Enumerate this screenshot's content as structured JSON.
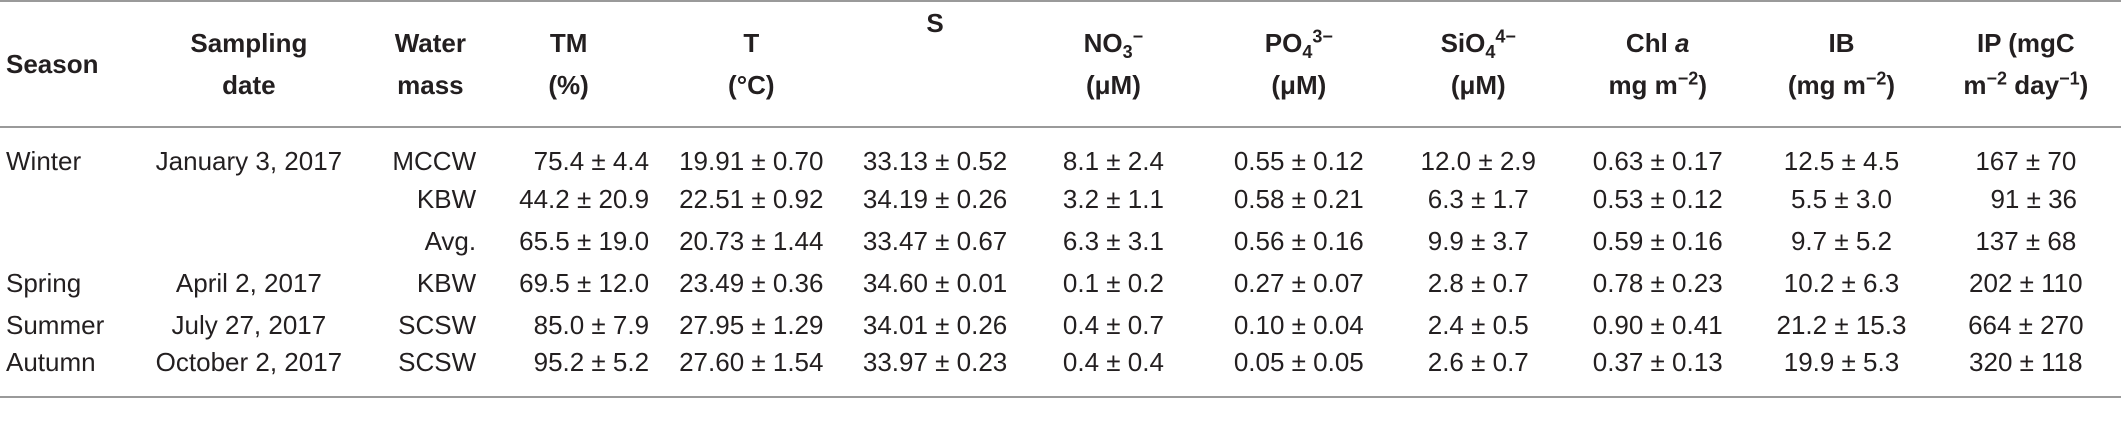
{
  "table": {
    "headers": {
      "season": "Season",
      "sampling_date": [
        "Sampling",
        "date"
      ],
      "water_mass": [
        "Water",
        "mass"
      ],
      "tm": [
        "TM",
        "(%)"
      ],
      "t": [
        "T",
        "(°C)"
      ],
      "s": "S",
      "no3": {
        "base": "NO",
        "sub": "3",
        "sup": "−",
        "unit": "(μM)"
      },
      "po4": {
        "base": "PO",
        "sub": "4",
        "sup": "3−",
        "unit": "(μM)"
      },
      "sio4": {
        "base": "SiO",
        "sub": "4",
        "sup": "4−",
        "unit": "(μM)"
      },
      "chl": {
        "base": "Chl ",
        "italic": "a",
        "unit_base": "mg m",
        "unit_sup": "−2",
        "unit_end": ")"
      },
      "ib": {
        "base": "IB",
        "unit_base": "(mg m",
        "unit_sup": "−2",
        "unit_end": ")"
      },
      "ip": {
        "line1": "IP (mgC",
        "unit_base": "m",
        "unit_sup1": "−2",
        "unit_mid": " day",
        "unit_sup2": "−1",
        "unit_end": ")"
      }
    },
    "rows": [
      {
        "season": "Winter",
        "date": "January 3, 2017",
        "water_mass": "MCCW",
        "tm": "75.4 ± 4.4",
        "t": "19.91 ± 0.70",
        "s": "33.13 ± 0.52",
        "no3": "8.1 ± 2.4",
        "po4": "0.55 ± 0.12",
        "sio4": "12.0 ± 2.9",
        "chl": "0.63 ± 0.17",
        "ib": "12.5 ± 4.5",
        "ip": "167 ± 70"
      },
      {
        "season": "",
        "date": "",
        "water_mass": "KBW",
        "tm": "44.2 ± 20.9",
        "t": "22.51 ± 0.92",
        "s": "34.19 ± 0.26",
        "no3": "3.2 ± 1.1",
        "po4": "0.58 ± 0.21",
        "sio4": "6.3 ± 1.7",
        "chl": "0.53 ± 0.12",
        "ib": "5.5 ± 3.0",
        "ip": "91 ± 36"
      },
      {
        "season": "",
        "date": "",
        "water_mass": "Avg.",
        "tm": "65.5 ± 19.0",
        "t": "20.73 ± 1.44",
        "s": "33.47 ± 0.67",
        "no3": "6.3 ± 3.1",
        "po4": "0.56 ± 0.16",
        "sio4": "9.9 ± 3.7",
        "chl": "0.59 ± 0.16",
        "ib": "9.7 ± 5.2",
        "ip": "137 ± 68"
      },
      {
        "season": "Spring",
        "date": "April 2, 2017",
        "water_mass": "KBW",
        "tm": "69.5 ± 12.0",
        "t": "23.49 ± 0.36",
        "s": "34.60 ± 0.01",
        "no3": "0.1 ± 0.2",
        "po4": "0.27 ± 0.07",
        "sio4": "2.8 ± 0.7",
        "chl": "0.78 ± 0.23",
        "ib": "10.2 ± 6.3",
        "ip": "202 ± 110"
      },
      {
        "season": "Summer",
        "date": "July 27, 2017",
        "water_mass": "SCSW",
        "tm": "85.0 ± 7.9",
        "t": "27.95 ± 1.29",
        "s": "34.01 ± 0.26",
        "no3": "0.4 ± 0.7",
        "po4": "0.10 ± 0.04",
        "sio4": "2.4 ± 0.5",
        "chl": "0.90 ± 0.41",
        "ib": "21.2 ± 15.3",
        "ip": "664 ± 270"
      },
      {
        "season": "Autumn",
        "date": "October 2, 2017",
        "water_mass": "SCSW",
        "tm": "95.2 ± 5.2",
        "t": "27.60 ± 1.54",
        "s": "33.97 ± 0.23",
        "no3": "0.4 ± 0.4",
        "po4": "0.05 ± 0.05",
        "sio4": "2.6 ± 0.7",
        "chl": "0.37 ± 0.13",
        "ib": "19.9 ± 5.3",
        "ip": "320 ± 118"
      }
    ]
  }
}
